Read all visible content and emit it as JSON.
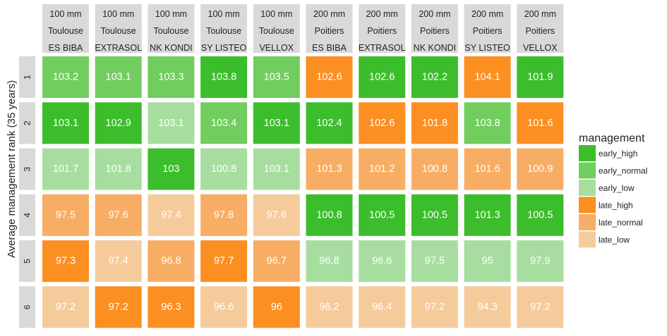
{
  "chart_data": {
    "type": "heatmap",
    "ylabel": "Average management rank (35 years)",
    "columns": [
      {
        "depth": "100 mm",
        "site": "Toulouse",
        "variety": "ES BIBA"
      },
      {
        "depth": "100 mm",
        "site": "Toulouse",
        "variety": "EXTRASOL"
      },
      {
        "depth": "100 mm",
        "site": "Toulouse",
        "variety": "NK KONDI"
      },
      {
        "depth": "100 mm",
        "site": "Toulouse",
        "variety": "SY LISTEO"
      },
      {
        "depth": "100 mm",
        "site": "Toulouse",
        "variety": "VELLOX"
      },
      {
        "depth": "200 mm",
        "site": "Poitiers",
        "variety": "ES BIBA"
      },
      {
        "depth": "200 mm",
        "site": "Poitiers",
        "variety": "EXTRASOL"
      },
      {
        "depth": "200 mm",
        "site": "Poitiers",
        "variety": "NK KONDI"
      },
      {
        "depth": "200 mm",
        "site": "Poitiers",
        "variety": "SY LISTEO"
      },
      {
        "depth": "200 mm",
        "site": "Poitiers",
        "variety": "VELLOX"
      }
    ],
    "rows": [
      "1",
      "2",
      "3",
      "4",
      "5",
      "6"
    ],
    "values": [
      [
        "103.2",
        "103.1",
        "103.3",
        "103.8",
        "103.5",
        "102.6",
        "102.6",
        "102.2",
        "104.1",
        "101.9"
      ],
      [
        "103.1",
        "102.9",
        "103.1",
        "103.4",
        "103.1",
        "102.4",
        "102.6",
        "101.8",
        "103.8",
        "101.6"
      ],
      [
        "101.7",
        "101.8",
        "103",
        "100.8",
        "103.1",
        "101.3",
        "101.2",
        "100.8",
        "101.6",
        "100.9"
      ],
      [
        "97.5",
        "97.6",
        "97.4",
        "97.8",
        "97.6",
        "100.8",
        "100.5",
        "100.5",
        "101.3",
        "100.5"
      ],
      [
        "97.3",
        "97.4",
        "96.8",
        "97.7",
        "96.7",
        "96.8",
        "96.6",
        "97.5",
        "95",
        "97.9"
      ],
      [
        "97.2",
        "97.2",
        "96.3",
        "96.6",
        "96",
        "96.2",
        "96.4",
        "97.2",
        "94.3",
        "97.2"
      ]
    ],
    "management": [
      [
        "early_normal",
        "early_normal",
        "early_normal",
        "early_high",
        "early_normal",
        "late_high",
        "early_high",
        "early_high",
        "late_high",
        "early_high"
      ],
      [
        "early_high",
        "early_high",
        "early_low",
        "early_normal",
        "early_high",
        "early_high",
        "late_high",
        "late_high",
        "early_normal",
        "late_high"
      ],
      [
        "early_low",
        "early_low",
        "early_high",
        "early_low",
        "early_low",
        "late_normal",
        "late_normal",
        "late_normal",
        "late_normal",
        "late_normal"
      ],
      [
        "late_normal",
        "late_normal",
        "late_low",
        "late_normal",
        "late_low",
        "early_high",
        "early_high",
        "early_high",
        "early_high",
        "early_high"
      ],
      [
        "late_high",
        "late_low",
        "late_normal",
        "late_high",
        "late_normal",
        "early_low",
        "early_low",
        "early_low",
        "early_low",
        "early_low"
      ],
      [
        "late_low",
        "late_high",
        "late_high",
        "late_low",
        "late_high",
        "late_low",
        "late_low",
        "late_low",
        "late_low",
        "late_low"
      ]
    ],
    "legend": {
      "title": "management",
      "position": "right",
      "items": [
        {
          "key": "early_high",
          "label": "early_high",
          "color": "#3cbd2c"
        },
        {
          "key": "early_normal",
          "label": "early_normal",
          "color": "#71cd5e"
        },
        {
          "key": "early_low",
          "label": "early_low",
          "color": "#a7dea0"
        },
        {
          "key": "late_high",
          "label": "late_high",
          "color": "#fb8f22"
        },
        {
          "key": "late_normal",
          "label": "late_normal",
          "color": "#f8ad65"
        },
        {
          "key": "late_low",
          "label": "late_low",
          "color": "#f6cb9c"
        }
      ]
    },
    "strip_color": "#d9d9d9"
  }
}
